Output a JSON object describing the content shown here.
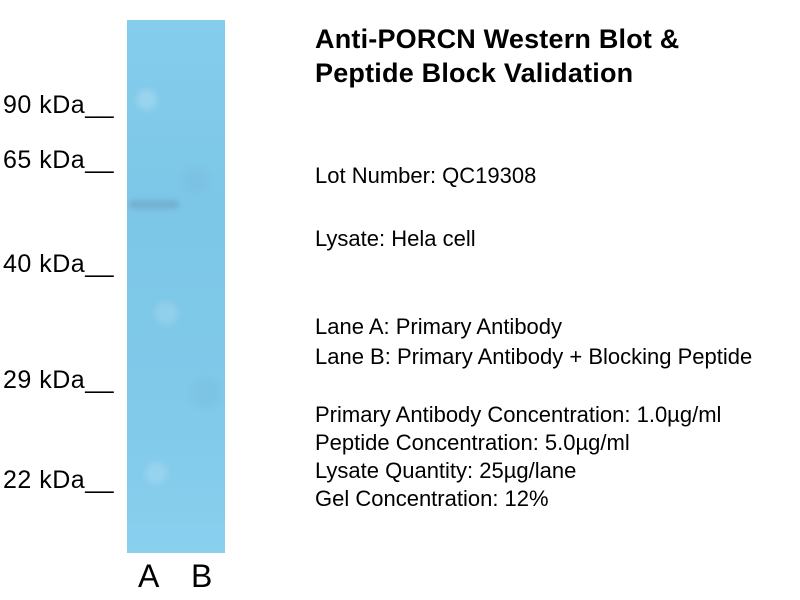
{
  "header": {
    "title": "Anti-PORCN Western Blot &\nPeptide Block Validation"
  },
  "details": {
    "lot": "Lot Number: QC19308",
    "lysate": "Lysate: Hela cell",
    "lane_a_description": "Lane A: Primary Antibody",
    "lane_b_description": "Lane B: Primary Antibody + Blocking Peptide",
    "conditions": [
      "Primary Antibody Concentration: 1.0µg/ml",
      "Peptide Concentration: 5.0µg/ml",
      "Lysate Quantity: 25µg/lane",
      "Gel Concentration: 12%"
    ]
  },
  "blot": {
    "markers": [
      "90 kDa__",
      "65 kDa__",
      "40 kDa__",
      "29 kDa__",
      "22 kDa__"
    ],
    "lanes": [
      "A",
      "B"
    ],
    "faint_band": {
      "lane": "A",
      "position": "between 65 kDa and 40 kDa markers"
    }
  },
  "colors": {
    "blot_blue": "#7fc8e8",
    "text": "#000000",
    "background": "#ffffff"
  }
}
